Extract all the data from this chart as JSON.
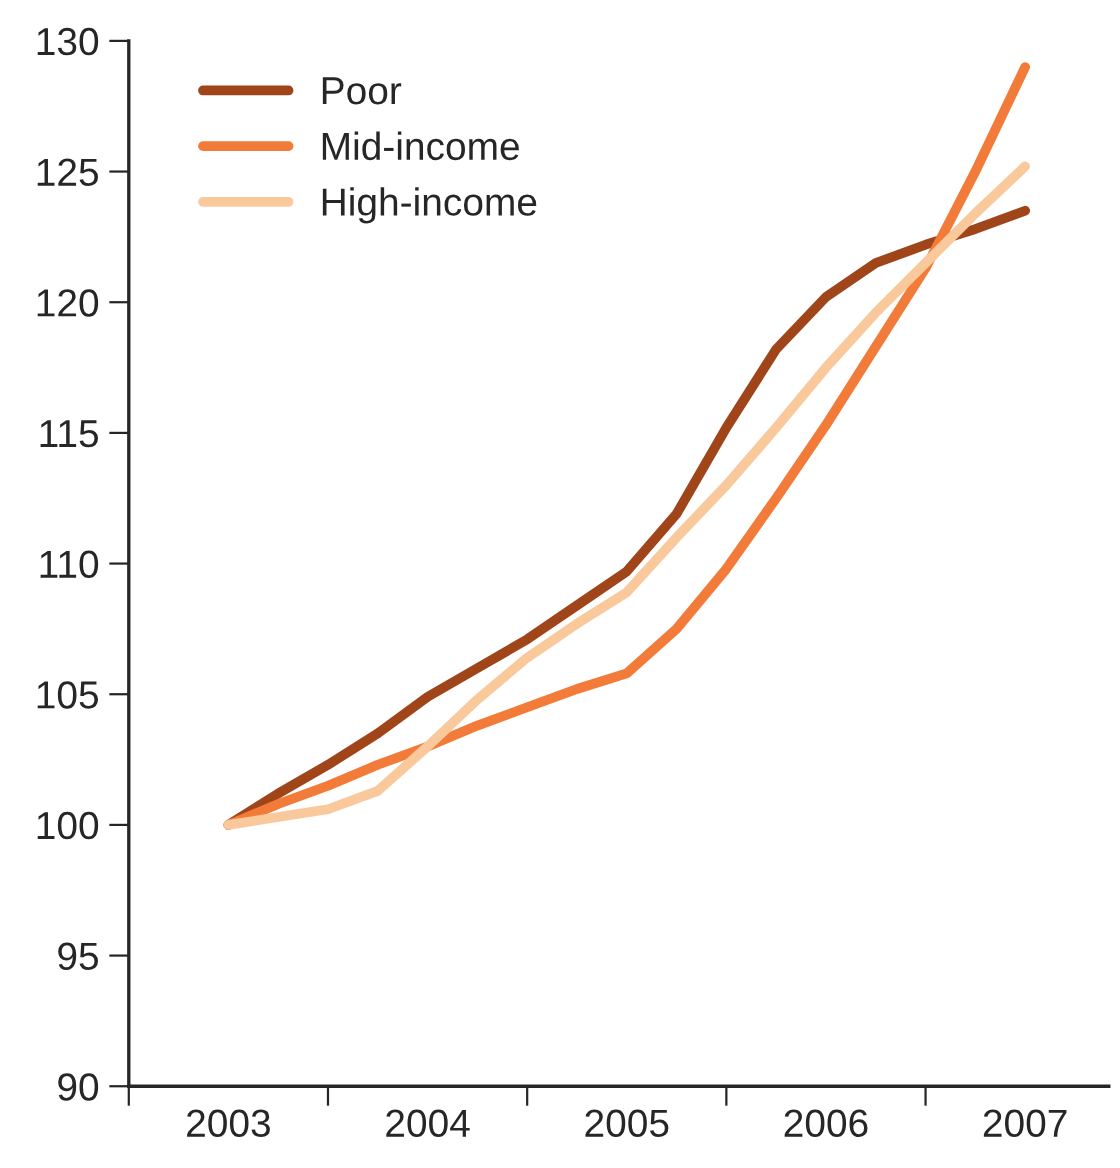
{
  "chart_data": {
    "type": "line",
    "x": [
      2003,
      2003.25,
      2003.5,
      2003.75,
      2004,
      2004.25,
      2004.5,
      2004.75,
      2005,
      2005.25,
      2005.5,
      2005.75,
      2006,
      2006.25,
      2006.5,
      2006.75,
      2007
    ],
    "series": [
      {
        "name": "Poor",
        "color": "#a0441a",
        "values": [
          100,
          101.2,
          102.3,
          103.5,
          104.9,
          106.0,
          107.1,
          108.4,
          109.7,
          111.9,
          115.2,
          118.2,
          120.2,
          121.5,
          122.2,
          122.8,
          123.5
        ]
      },
      {
        "name": "Mid-income",
        "color": "#f27b3a",
        "values": [
          100,
          100.8,
          101.5,
          102.3,
          103.0,
          103.8,
          104.5,
          105.2,
          105.8,
          107.5,
          109.8,
          112.5,
          115.3,
          118.3,
          121.3,
          125.0,
          129.0
        ]
      },
      {
        "name": "High-income",
        "color": "#f9c99c",
        "values": [
          100,
          100.3,
          100.6,
          101.3,
          103.0,
          104.8,
          106.4,
          107.7,
          108.9,
          111.0,
          113.0,
          115.2,
          117.5,
          119.6,
          121.5,
          123.4,
          125.2
        ]
      }
    ],
    "xlim": [
      2002.5,
      2007.42
    ],
    "xticks": [
      {
        "value": 2002.5,
        "label": null
      },
      {
        "value": 2003,
        "label": "2003"
      },
      {
        "value": 2003.5,
        "label": null
      },
      {
        "value": 2004,
        "label": "2004"
      },
      {
        "value": 2004.5,
        "label": null
      },
      {
        "value": 2005,
        "label": "2005"
      },
      {
        "value": 2005.5,
        "label": null
      },
      {
        "value": 2006,
        "label": "2006"
      },
      {
        "value": 2006.5,
        "label": null
      },
      {
        "value": 2007,
        "label": "2007"
      }
    ],
    "ylim": [
      90,
      130
    ],
    "yticks": [
      90,
      95,
      100,
      105,
      110,
      115,
      120,
      125,
      130
    ],
    "grid": false,
    "legend": "top left",
    "marker": "none",
    "line_style": "solid"
  }
}
